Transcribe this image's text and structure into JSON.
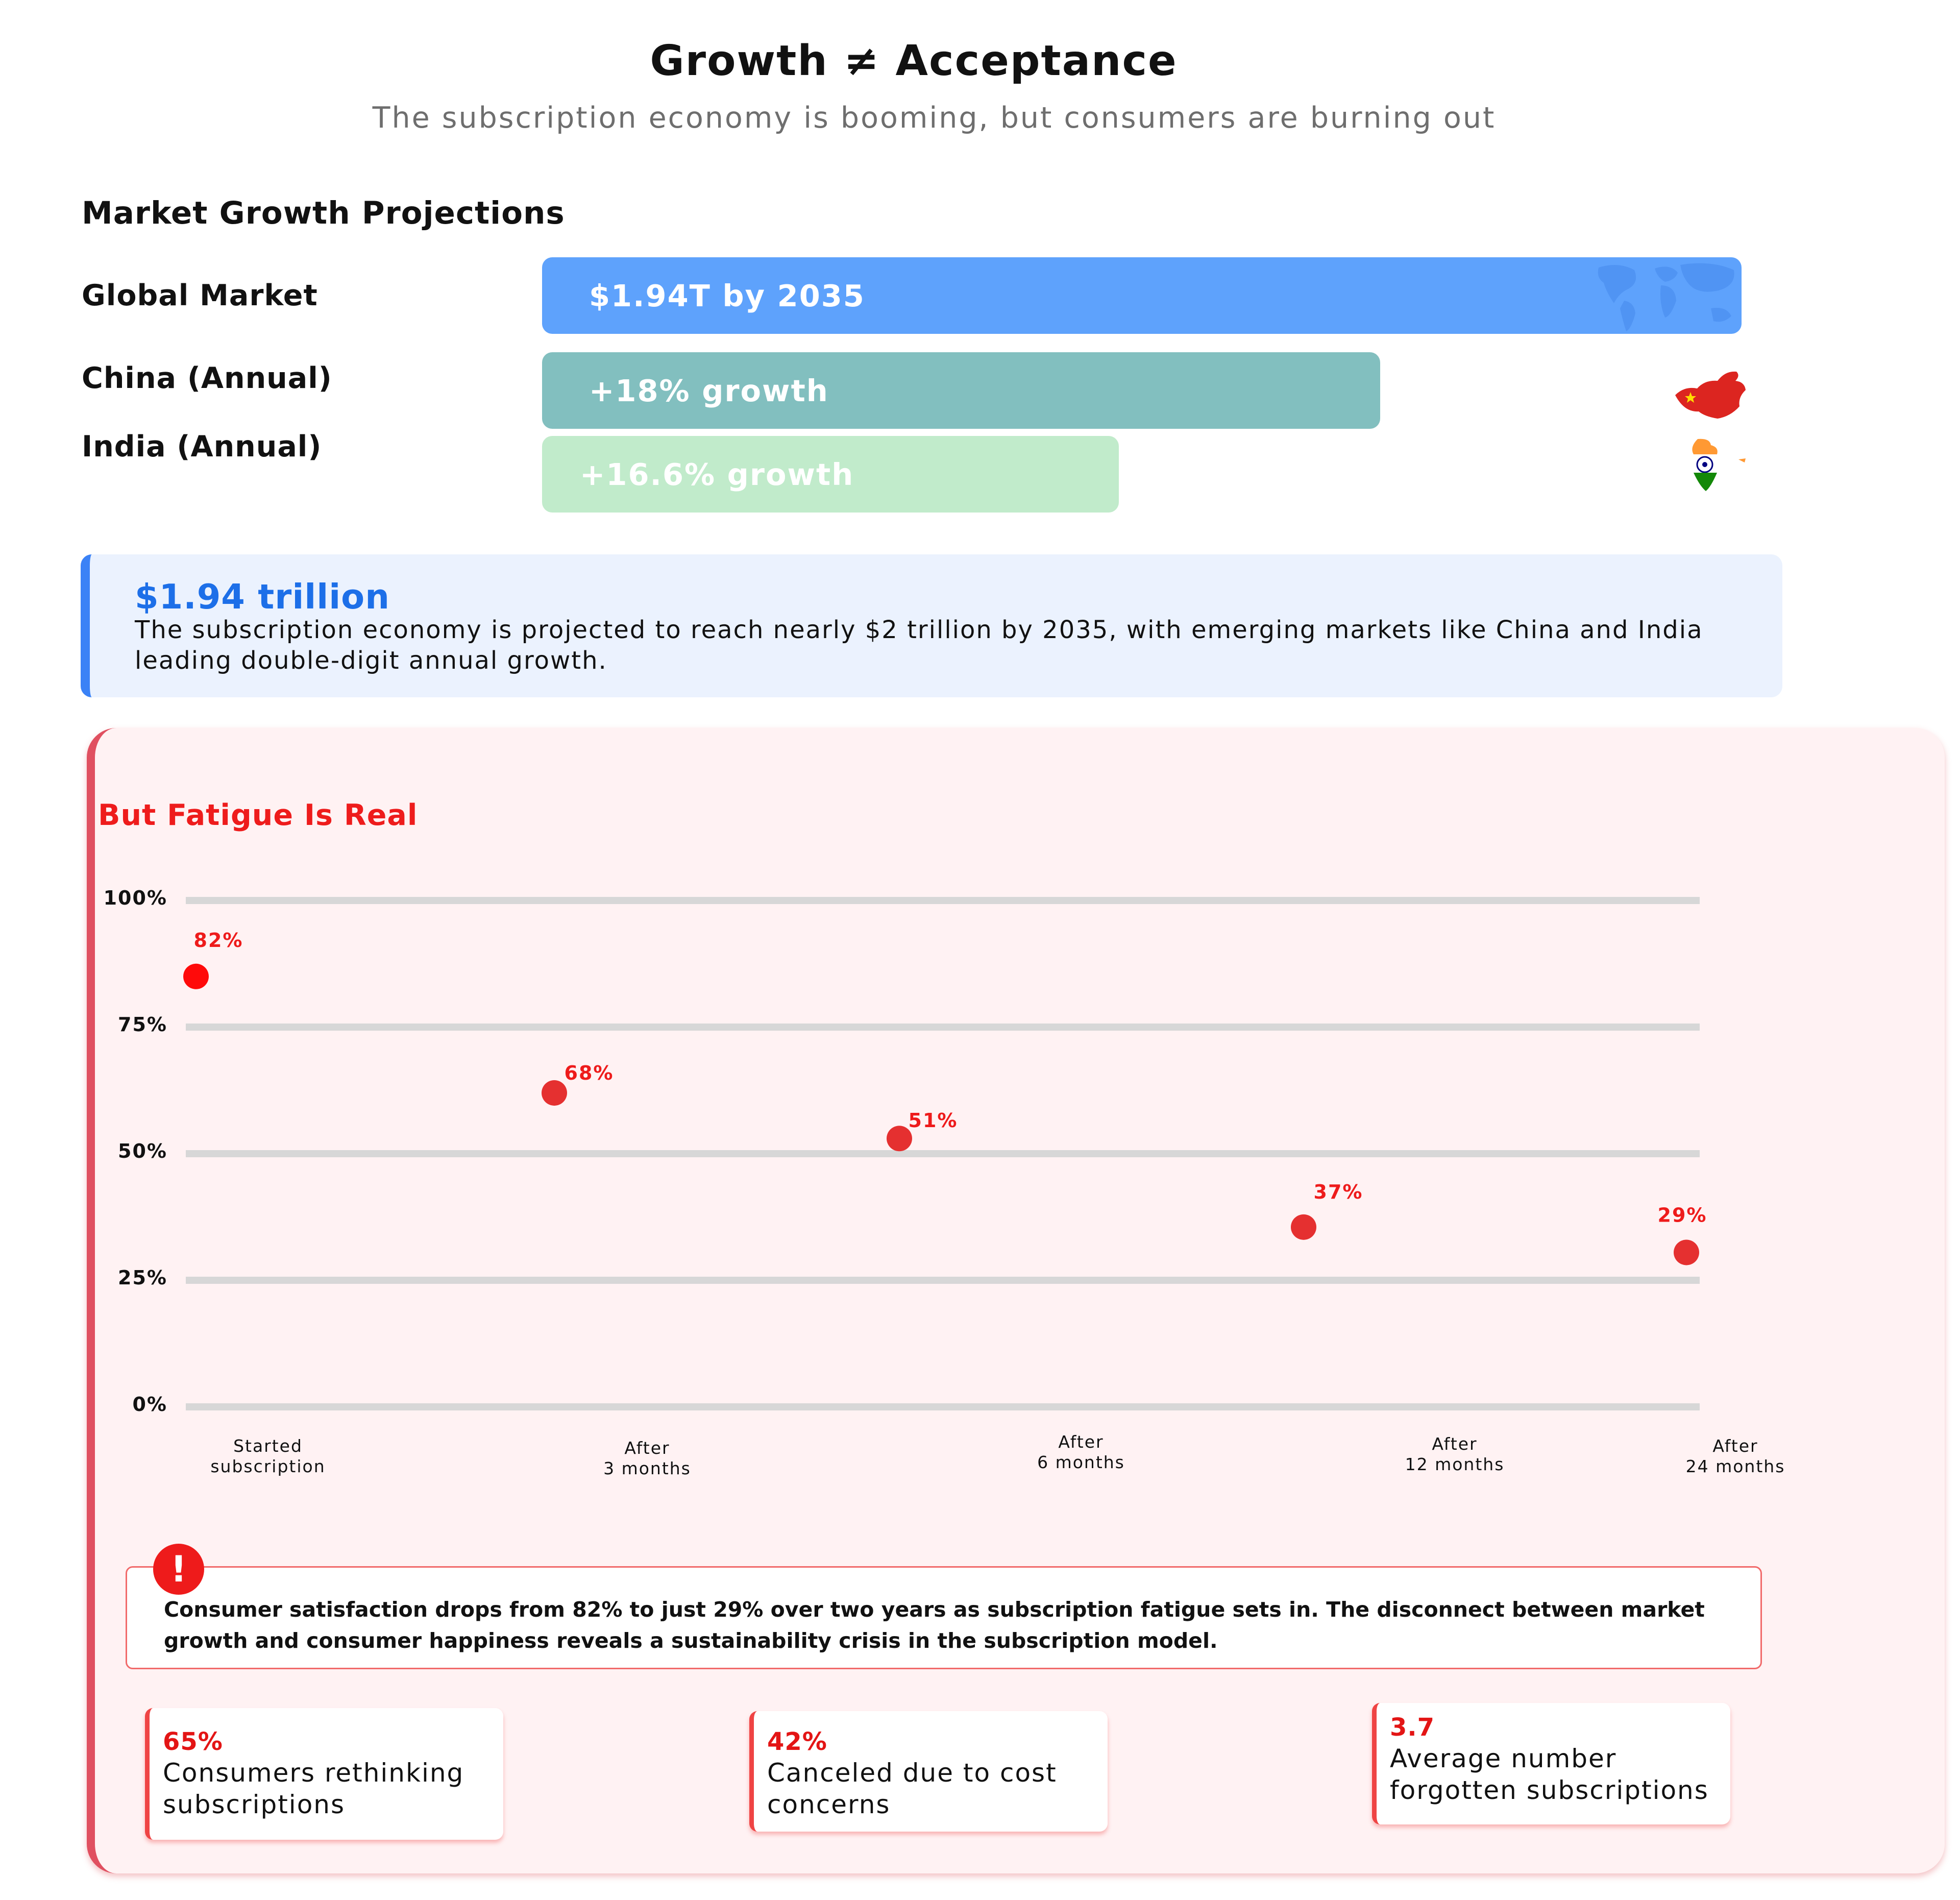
{
  "header": {
    "title": "Growth ≠ Acceptance",
    "subtitle": "The subscription economy is booming, but consumers are burning out"
  },
  "market_growth": {
    "heading": "Market Growth Projections",
    "rows": [
      {
        "label": "Global Market",
        "bar_text": "$1.94T by 2035",
        "color": "#5ea2fc",
        "icon": "world-map-icon"
      },
      {
        "label": "China (Annual)",
        "bar_text": "+18% growth",
        "color": "#82bfbf",
        "icon": "china-flag-map-icon"
      },
      {
        "label": "India (Annual)",
        "bar_text": "+16.6% growth",
        "color": "#c1ebcb",
        "icon": "india-flag-map-icon"
      }
    ]
  },
  "callout": {
    "value": "$1.94 trillion",
    "text": "The subscription economy is projected to reach nearly $2 trillion by 2035, with emerging markets like China and India leading double-digit annual growth."
  },
  "fatigue": {
    "heading": "But Fatigue Is Real",
    "alert_icon": "exclamation-icon",
    "alert_symbol": "!",
    "insight": "Consumer satisfaction drops from 82% to just 29% over two years as subscription fatigue sets in. The disconnect between market growth and consumer happiness reveals a sustainability crisis in the subscription model.",
    "stats": [
      {
        "value": "65%",
        "label_lines": [
          "Consumers rethinking",
          "subscriptions"
        ]
      },
      {
        "value": "42%",
        "label_lines": [
          "Canceled due to cost",
          "concerns"
        ]
      },
      {
        "value": "3.7",
        "label_lines": [
          "Average number",
          "forgotten subscriptions"
        ]
      }
    ]
  },
  "chart_data": {
    "type": "scatter",
    "title": "But Fatigue Is Real",
    "xlabel": "",
    "ylabel": "",
    "ylim": [
      0,
      100
    ],
    "yticks": [
      0,
      25,
      50,
      75,
      100
    ],
    "ytick_labels": [
      "0%",
      "25%",
      "50%",
      "75%",
      "100%"
    ],
    "grid": true,
    "point_color": "#ee1b1b",
    "categories": [
      [
        "Started",
        "subscription"
      ],
      [
        "After",
        "3 months"
      ],
      [
        "After",
        "6 months"
      ],
      [
        "After",
        "12 months"
      ],
      [
        "After",
        "24 months"
      ]
    ],
    "series": [
      {
        "values": [
          82,
          68,
          51,
          37,
          29
        ],
        "labels": [
          "82%",
          "68%",
          "51%",
          "37%",
          "29%"
        ]
      }
    ]
  }
}
